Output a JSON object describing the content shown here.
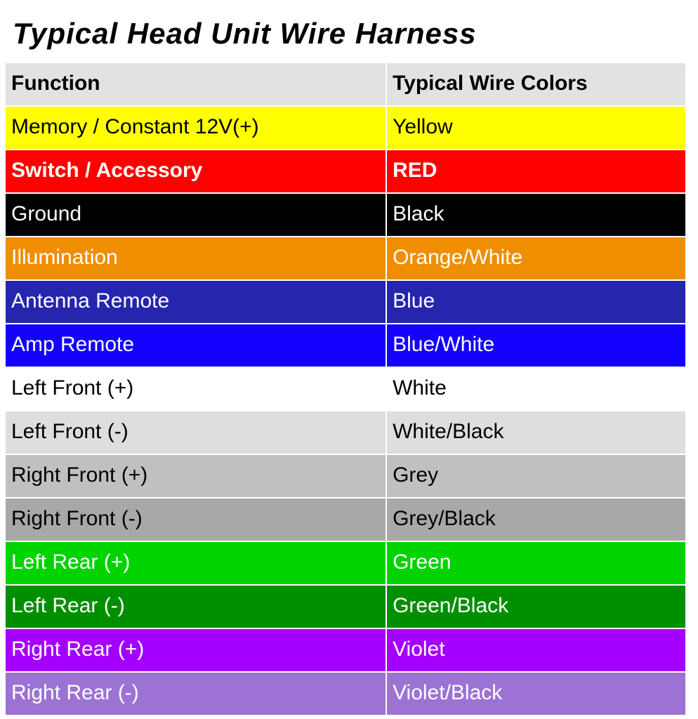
{
  "title": "Typical Head Unit Wire Harness",
  "table": {
    "header": {
      "function": "Function",
      "colors": "Typical Wire Colors",
      "bg": "#e2e2e2",
      "text": "#000000",
      "font_weight": "700"
    },
    "rows": [
      {
        "function": "Memory / Constant 12V(+)",
        "color_label": "Yellow",
        "bg": "#ffff00",
        "text": "#000000",
        "font_weight": "400"
      },
      {
        "function": "Switch / Accessory",
        "color_label": "RED",
        "bg": "#ff0000",
        "text": "#ffffff",
        "font_weight": "700"
      },
      {
        "function": "Ground",
        "color_label": "Black",
        "bg": "#000000",
        "text": "#ffffff",
        "font_weight": "400"
      },
      {
        "function": "Illumination",
        "color_label": "Orange/White",
        "bg": "#ef8e00",
        "text": "#ffffff",
        "font_weight": "400"
      },
      {
        "function": "Antenna Remote",
        "color_label": "Blue",
        "bg": "#2525ad",
        "text": "#ffffff",
        "font_weight": "400"
      },
      {
        "function": "Amp Remote",
        "color_label": "Blue/White",
        "bg": "#1400ff",
        "text": "#ffffff",
        "font_weight": "400"
      },
      {
        "function": "Left Front (+)",
        "color_label": "White",
        "bg": "#ffffff",
        "text": "#000000",
        "font_weight": "400"
      },
      {
        "function": "Left Front (-)",
        "color_label": "White/Black",
        "bg": "#dedede",
        "text": "#000000",
        "font_weight": "400"
      },
      {
        "function": "Right Front (+)",
        "color_label": "Grey",
        "bg": "#c0c0c0",
        "text": "#000000",
        "font_weight": "400"
      },
      {
        "function": "Right Front (-)",
        "color_label": "Grey/Black",
        "bg": "#a8a8a8",
        "text": "#000000",
        "font_weight": "400"
      },
      {
        "function": "Left Rear (+)",
        "color_label": "Green",
        "bg": "#00d300",
        "text": "#ffffff",
        "font_weight": "400"
      },
      {
        "function": "Left Rear (-)",
        "color_label": "Green/Black",
        "bg": "#008f00",
        "text": "#ffffff",
        "font_weight": "400"
      },
      {
        "function": "Right Rear (+)",
        "color_label": "Violet",
        "bg": "#a400ff",
        "text": "#ffffff",
        "font_weight": "400"
      },
      {
        "function": "Right Rear (-)",
        "color_label": "Violet/Black",
        "bg": "#9d72d5",
        "text": "#ffffff",
        "font_weight": "400"
      }
    ]
  }
}
